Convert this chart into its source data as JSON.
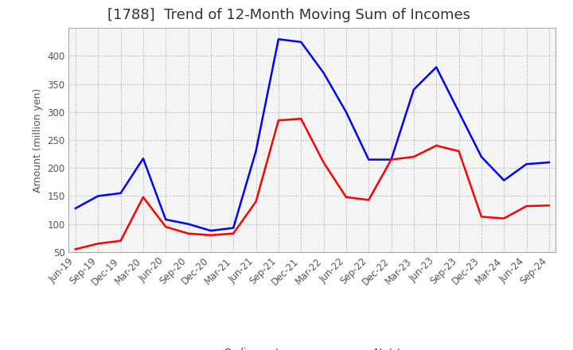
{
  "title": "[1788]  Trend of 12-Month Moving Sum of Incomes",
  "ylabel": "Amount (million yen)",
  "x_labels": [
    "Jun-19",
    "Sep-19",
    "Dec-19",
    "Mar-20",
    "Jun-20",
    "Sep-20",
    "Dec-20",
    "Mar-21",
    "Jun-21",
    "Sep-21",
    "Dec-21",
    "Mar-22",
    "Jun-22",
    "Sep-22",
    "Dec-22",
    "Mar-23",
    "Jun-23",
    "Sep-23",
    "Dec-23",
    "Mar-24",
    "Jun-24",
    "Sep-24"
  ],
  "ordinary_income": [
    128,
    150,
    155,
    217,
    108,
    100,
    88,
    93,
    230,
    430,
    425,
    370,
    300,
    215,
    215,
    340,
    380,
    300,
    220,
    178,
    207,
    210
  ],
  "net_income": [
    55,
    65,
    70,
    148,
    95,
    83,
    80,
    83,
    140,
    285,
    288,
    210,
    148,
    143,
    215,
    220,
    240,
    230,
    113,
    110,
    132,
    133
  ],
  "ordinary_color": "#0000ff",
  "net_color": "#ff0000",
  "ylim": [
    50,
    450
  ],
  "yticks": [
    50,
    100,
    150,
    200,
    250,
    300,
    350,
    400
  ],
  "background_color": "#ffffff",
  "grid_color": "#aaaaaa",
  "title_fontsize": 13,
  "label_fontsize": 9,
  "tick_fontsize": 8.5,
  "legend_fontsize": 10
}
